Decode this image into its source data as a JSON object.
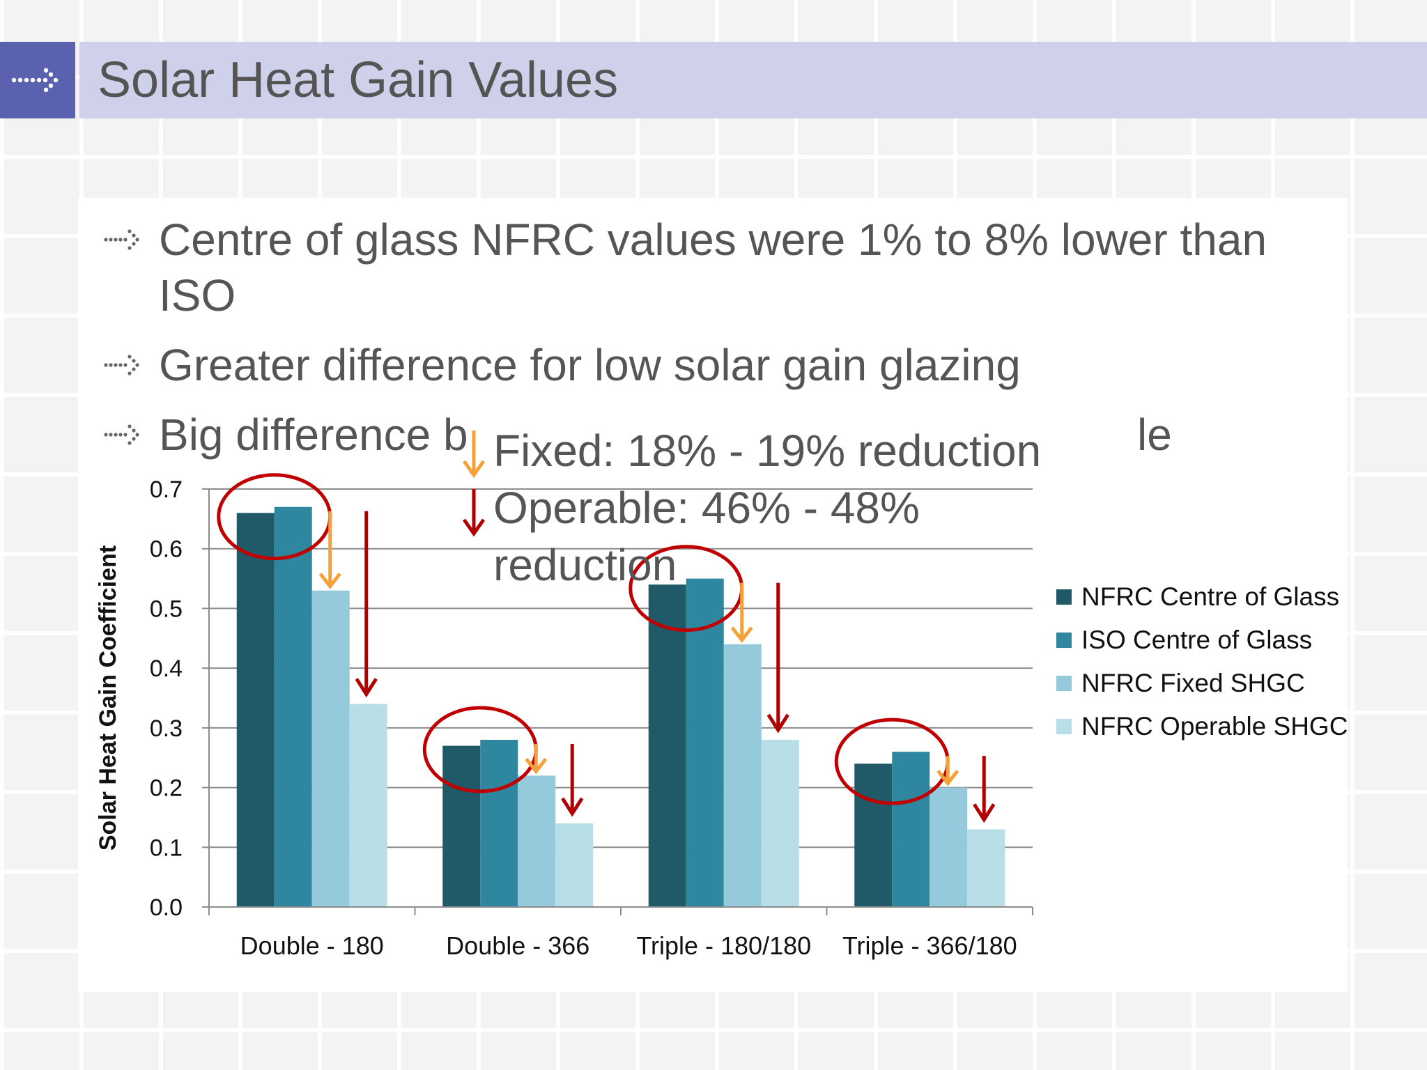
{
  "slide": {
    "title": "Solar Heat Gain Values",
    "bullets": [
      "Centre of glass NFRC values were 1% to 8% lower than",
      "ISO",
      "Greater difference for low solar gain glazing",
      "Big difference b",
      "le"
    ],
    "callout": {
      "fixed": "Fixed: 18% - 19% reduction",
      "operable_1": "Operable: 46% - 48%",
      "operable_2": "reduction"
    }
  },
  "colors": {
    "header_box": "#5a62b0",
    "header_strip": "#cfd0ea",
    "circle": "#c00000",
    "arrow_fixed": "#f4a13a",
    "arrow_operable": "#b00000"
  },
  "icons": {
    "header": "dotted-arrow-right-icon",
    "bullet": "dotted-arrow-right-icon"
  },
  "chart_data": {
    "type": "bar",
    "categories": [
      "Double - 180",
      "Double - 366",
      "Triple - 180/180",
      "Triple - 366/180"
    ],
    "series": [
      {
        "name": "NFRC Centre of Glass",
        "color": "#205a68",
        "values": [
          0.66,
          0.27,
          0.54,
          0.24
        ]
      },
      {
        "name": "ISO Centre of Glass",
        "color": "#2e879e",
        "values": [
          0.67,
          0.28,
          0.55,
          0.26
        ]
      },
      {
        "name": "NFRC Fixed SHGC",
        "color": "#95cadc",
        "values": [
          0.53,
          0.22,
          0.44,
          0.2
        ]
      },
      {
        "name": "NFRC Operable SHGC",
        "color": "#b8dee8",
        "values": [
          0.34,
          0.14,
          0.28,
          0.13
        ]
      }
    ],
    "ylabel": "Solar Heat Gain Coefficient",
    "ylim": [
      0,
      0.7
    ],
    "yticks": [
      "0.0",
      "0.1",
      "0.2",
      "0.3",
      "0.4",
      "0.5",
      "0.6",
      "0.7"
    ],
    "grid": true,
    "legend_position": "right"
  }
}
